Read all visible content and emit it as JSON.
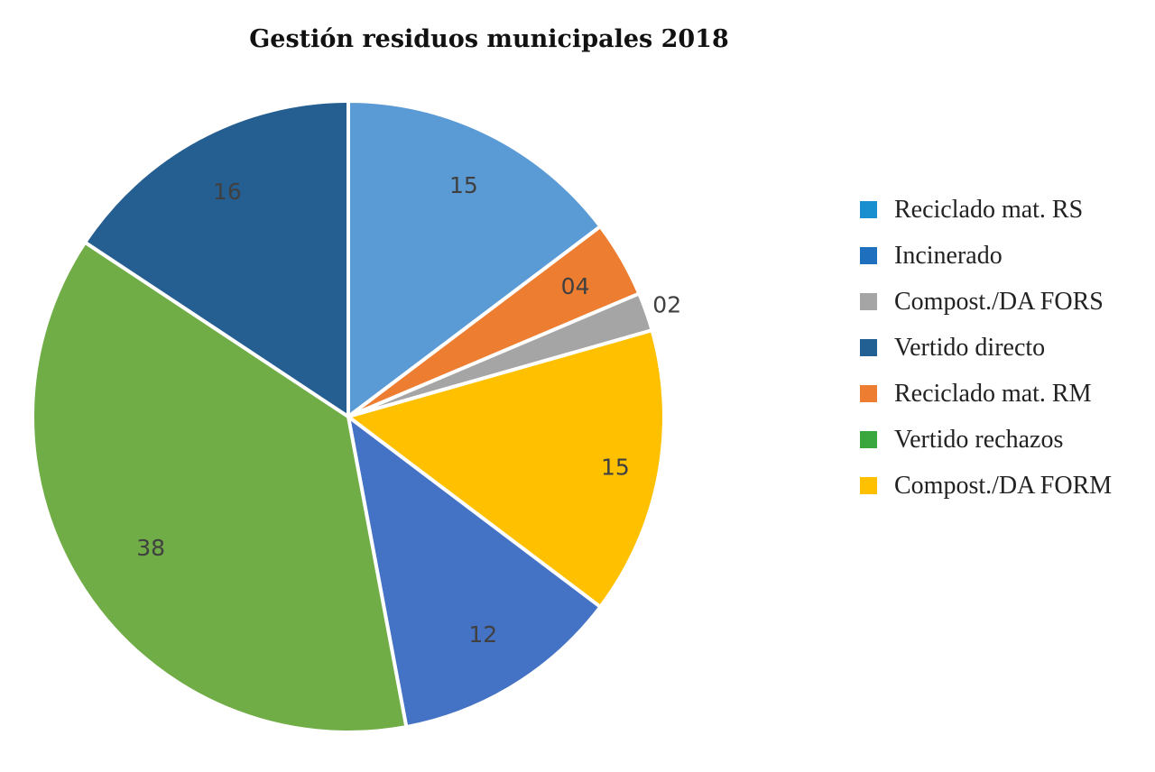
{
  "chart_data": {
    "type": "pie",
    "title": "Gestión residuos municipales 2018",
    "slices": [
      {
        "label": "Reciclado mat. RS",
        "value": 15,
        "value_label": "15",
        "color": "#5b9bd5"
      },
      {
        "label": "Reciclado mat. RM",
        "value": 4,
        "value_label": "04",
        "color": "#ed7d31"
      },
      {
        "label": "Compost./DA FORS",
        "value": 2,
        "value_label": "02",
        "color": "#a5a5a5"
      },
      {
        "label": "Compost./DA FORM",
        "value": 15,
        "value_label": "15",
        "color": "#ffc000"
      },
      {
        "label": "Incinerado",
        "value": 12,
        "value_label": "12",
        "color": "#4472c4"
      },
      {
        "label": "Vertido rechazos",
        "value": 38,
        "value_label": "38",
        "color": "#70ad47"
      },
      {
        "label": "Vertido directo",
        "value": 16,
        "value_label": "16",
        "color": "#255e91"
      }
    ],
    "legend_position": "right",
    "legend": [
      {
        "label": "Reciclado mat. RS",
        "color": "#1a8fd0"
      },
      {
        "label": "Incinerado",
        "color": "#1f6fbf"
      },
      {
        "label": "Compost./DA FORS",
        "color": "#a5a5a5"
      },
      {
        "label": "Vertido directo",
        "color": "#225f92"
      },
      {
        "label": "Reciclado mat. RM",
        "color": "#ed7d31"
      },
      {
        "label": "Vertido rechazos",
        "color": "#3aa63e"
      },
      {
        "label": "Compost./DA FORM",
        "color": "#ffc000"
      }
    ]
  }
}
